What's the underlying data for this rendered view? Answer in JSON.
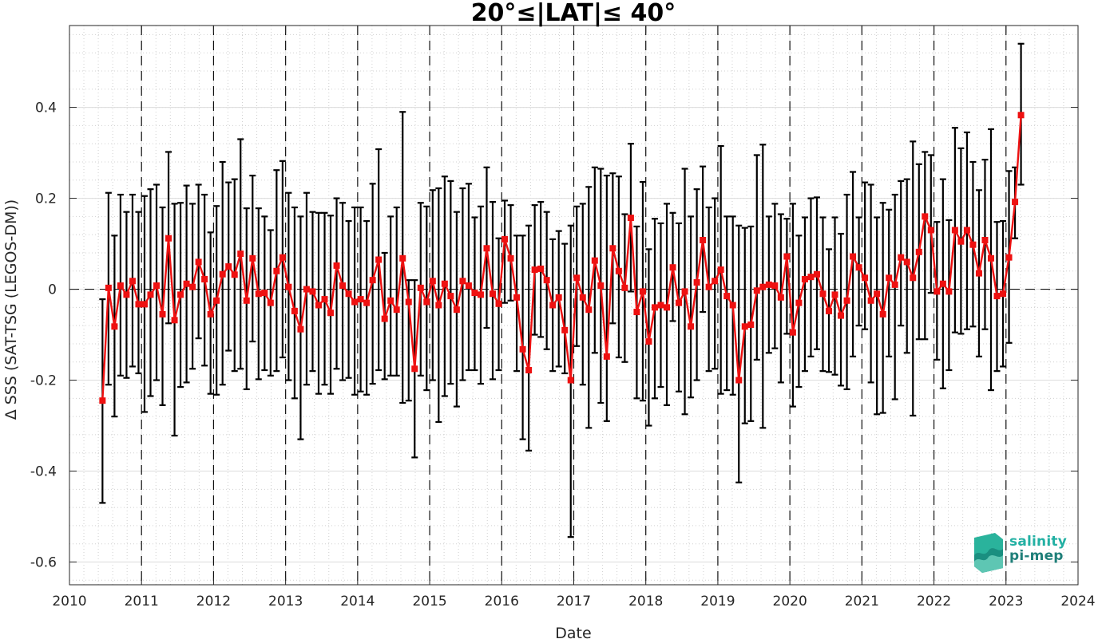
{
  "chart_data": {
    "type": "line",
    "title": "20°≤|LAT|≤ 40°",
    "xlabel": "Date",
    "ylabel": "Δ SSS (SAT-TSG (LEGOS-DM))",
    "xlim": [
      2010,
      2024
    ],
    "ylim": [
      -0.65,
      0.58
    ],
    "x_ticks": [
      2010,
      2011,
      2012,
      2013,
      2014,
      2015,
      2016,
      2017,
      2018,
      2019,
      2020,
      2021,
      2022,
      2023,
      2024
    ],
    "x_tick_labels": [
      "2010",
      "2011",
      "2012",
      "2013",
      "2014",
      "2015",
      "2016",
      "2017",
      "2018",
      "2019",
      "2020",
      "2021",
      "2022",
      "2023",
      "2024"
    ],
    "y_ticks": [
      -0.6,
      -0.4,
      -0.2,
      0,
      0.2,
      0.4
    ],
    "y_tick_labels": [
      "-0.6",
      "-0.4",
      "-0.2",
      "0",
      "0.2",
      "0.4"
    ],
    "grid": true,
    "year_boundaries_dashed": [
      2011,
      2012,
      2013,
      2014,
      2015,
      2016,
      2017,
      2018,
      2019,
      2020,
      2021,
      2022,
      2023
    ],
    "zero_line_dashed": true,
    "series": [
      {
        "color": "#ee1111",
        "marker": "square",
        "error_bar_color": "#000000",
        "x_start_month": "2010-06",
        "x_step": "1 month",
        "y": [
          -0.245,
          0.003,
          -0.082,
          0.008,
          -0.012,
          0.018,
          -0.033,
          -0.033,
          -0.012,
          0.008,
          -0.055,
          0.112,
          -0.068,
          -0.012,
          0.012,
          0.005,
          0.06,
          0.022,
          -0.055,
          -0.025,
          0.033,
          0.05,
          0.032,
          0.078,
          -0.025,
          0.068,
          -0.01,
          -0.008,
          -0.03,
          0.04,
          0.07,
          0.005,
          -0.048,
          -0.088,
          0.0,
          -0.005,
          -0.035,
          -0.022,
          -0.052,
          0.052,
          0.008,
          -0.01,
          -0.028,
          -0.022,
          -0.03,
          0.02,
          0.065,
          -0.065,
          -0.025,
          -0.045,
          0.068,
          -0.028,
          -0.175,
          0.003,
          -0.028,
          0.018,
          -0.035,
          0.012,
          -0.015,
          -0.045,
          0.018,
          0.008,
          -0.008,
          -0.012,
          0.09,
          -0.01,
          -0.032,
          0.11,
          0.068,
          -0.018,
          -0.132,
          -0.178,
          0.043,
          0.045,
          0.02,
          -0.035,
          -0.018,
          -0.09,
          -0.2,
          0.025,
          -0.018,
          -0.045,
          0.063,
          0.008,
          -0.148,
          0.09,
          0.04,
          0.003,
          0.157,
          -0.05,
          -0.005,
          -0.115,
          -0.04,
          -0.035,
          -0.04,
          0.048,
          -0.03,
          -0.005,
          -0.082,
          0.015,
          0.108,
          0.005,
          0.018,
          0.043,
          -0.015,
          -0.035,
          -0.2,
          -0.082,
          -0.078,
          -0.003,
          0.005,
          0.01,
          0.008,
          -0.018,
          0.072,
          -0.095,
          -0.03,
          0.022,
          0.027,
          0.033,
          -0.01,
          -0.048,
          -0.012,
          -0.058,
          -0.025,
          0.072,
          0.048,
          0.025,
          -0.025,
          -0.01,
          -0.055,
          0.025,
          0.01,
          0.07,
          0.06,
          0.025,
          0.082,
          0.16,
          0.13,
          -0.005,
          0.012,
          -0.005,
          0.13,
          0.105,
          0.13,
          0.098,
          0.035,
          0.108,
          0.068,
          -0.015,
          -0.01,
          0.07,
          0.192,
          0.383
        ],
        "err_upper": [
          -0.022,
          0.212,
          0.118,
          0.208,
          0.17,
          0.208,
          0.17,
          0.205,
          0.22,
          0.23,
          0.18,
          0.302,
          0.188,
          0.19,
          0.228,
          0.188,
          0.23,
          0.208,
          0.125,
          0.183,
          0.28,
          0.235,
          0.242,
          0.33,
          0.178,
          0.25,
          0.178,
          0.16,
          0.13,
          0.262,
          0.282,
          0.212,
          0.18,
          0.16,
          0.212,
          0.17,
          0.168,
          0.168,
          0.162,
          0.2,
          0.19,
          0.15,
          0.18,
          0.18,
          0.15,
          0.232,
          0.308,
          0.08,
          0.16,
          0.18,
          0.39,
          0.02,
          0.02,
          0.19,
          0.182,
          0.218,
          0.222,
          0.248,
          0.238,
          0.17,
          0.222,
          0.232,
          0.158,
          0.182,
          0.268,
          0.192,
          0.112,
          0.195,
          0.185,
          0.118,
          0.118,
          0.14,
          0.185,
          0.192,
          0.17,
          0.11,
          0.128,
          0.1,
          0.14,
          0.182,
          0.188,
          0.225,
          0.268,
          0.265,
          0.25,
          0.255,
          0.248,
          0.165,
          0.32,
          0.138,
          0.236,
          0.088,
          0.155,
          0.145,
          0.188,
          0.168,
          0.145,
          0.265,
          0.16,
          0.22,
          0.27,
          0.18,
          0.2,
          0.315,
          0.16,
          0.16,
          0.14,
          0.135,
          0.138,
          0.295,
          0.318,
          0.16,
          0.188,
          0.165,
          0.155,
          0.188,
          0.118,
          0.158,
          0.2,
          0.202,
          0.158,
          0.088,
          0.158,
          0.122,
          0.208,
          0.258,
          0.158,
          0.235,
          0.23,
          0.158,
          0.19,
          0.175,
          0.208,
          0.238,
          0.242,
          0.325,
          0.275,
          0.302,
          0.295,
          0.148,
          0.242,
          0.152,
          0.355,
          0.31,
          0.345,
          0.28,
          0.218,
          0.285,
          0.352,
          0.148,
          0.15,
          0.26,
          0.268,
          0.54
        ],
        "err_lower": [
          -0.47,
          -0.21,
          -0.28,
          -0.19,
          -0.195,
          -0.17,
          -0.185,
          -0.27,
          -0.235,
          -0.2,
          -0.255,
          -0.075,
          -0.322,
          -0.215,
          -0.205,
          -0.175,
          -0.108,
          -0.168,
          -0.23,
          -0.232,
          -0.21,
          -0.135,
          -0.18,
          -0.175,
          -0.22,
          -0.115,
          -0.198,
          -0.178,
          -0.19,
          -0.18,
          -0.15,
          -0.2,
          -0.24,
          -0.33,
          -0.21,
          -0.18,
          -0.23,
          -0.21,
          -0.23,
          -0.175,
          -0.2,
          -0.195,
          -0.232,
          -0.225,
          -0.232,
          -0.208,
          -0.178,
          -0.198,
          -0.19,
          -0.19,
          -0.25,
          -0.245,
          -0.37,
          -0.19,
          -0.222,
          -0.2,
          -0.292,
          -0.235,
          -0.208,
          -0.258,
          -0.2,
          -0.178,
          -0.178,
          -0.208,
          -0.085,
          -0.198,
          -0.178,
          -0.03,
          -0.025,
          -0.18,
          -0.33,
          -0.355,
          -0.1,
          -0.105,
          -0.132,
          -0.18,
          -0.17,
          -0.185,
          -0.545,
          -0.125,
          -0.21,
          -0.305,
          -0.14,
          -0.25,
          -0.29,
          -0.075,
          -0.15,
          -0.16,
          -0.005,
          -0.24,
          -0.245,
          -0.3,
          -0.24,
          -0.215,
          -0.255,
          -0.07,
          -0.225,
          -0.275,
          -0.238,
          -0.2,
          -0.05,
          -0.18,
          -0.175,
          -0.23,
          -0.222,
          -0.232,
          -0.425,
          -0.295,
          -0.29,
          -0.155,
          -0.305,
          -0.14,
          -0.13,
          -0.205,
          -0.098,
          -0.258,
          -0.215,
          -0.18,
          -0.148,
          -0.132,
          -0.18,
          -0.182,
          -0.188,
          -0.212,
          -0.22,
          -0.148,
          -0.08,
          -0.088,
          -0.205,
          -0.275,
          -0.272,
          -0.148,
          -0.242,
          -0.08,
          -0.14,
          -0.278,
          -0.11,
          -0.11,
          -0.008,
          -0.155,
          -0.218,
          -0.178,
          -0.095,
          -0.098,
          -0.088,
          -0.082,
          -0.148,
          -0.088,
          -0.222,
          -0.18,
          -0.17,
          -0.118,
          0.112,
          0.23
        ]
      }
    ]
  },
  "logo": {
    "line1": "salinity",
    "line2": "pi-mep"
  }
}
